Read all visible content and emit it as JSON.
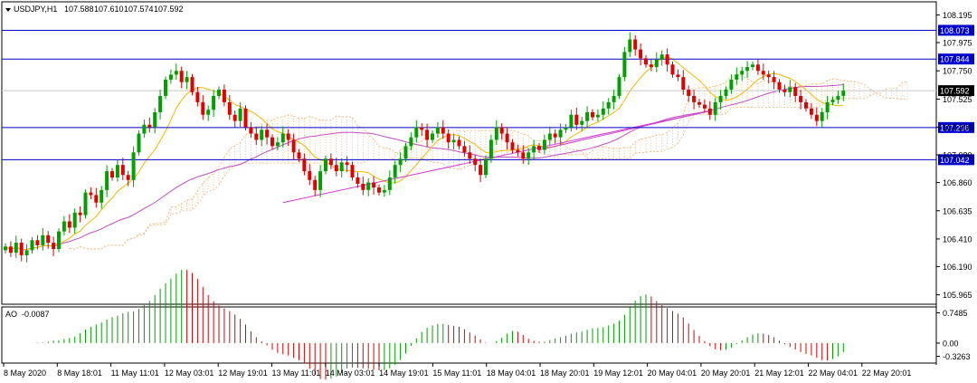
{
  "chart_data": [
    {
      "type": "candlestick",
      "title": "USDJPY,H1",
      "ohlc_header": [
        "107.588",
        "107.610",
        "107.574",
        "107.592"
      ],
      "ylim": [
        105.89,
        108.3
      ],
      "y_ticks": [
        "108.195",
        "107.975",
        "107.750",
        "107.525",
        "107.300",
        "107.080",
        "106.860",
        "106.635",
        "106.410",
        "106.190",
        "105.965"
      ],
      "x_ticks": [
        "8 May 2020",
        "8 May 18:01",
        "11 May 11:01",
        "12 May 03:01",
        "12 May 19:01",
        "13 May 11:01",
        "14 May 03:01",
        "14 May 19:01",
        "15 May 11:01",
        "18 May 04:01",
        "18 May 20:01",
        "19 May 12:01",
        "20 May 04:01",
        "20 May 20:01",
        "21 May 12:01",
        "22 May 04:01",
        "22 May 20:01"
      ],
      "current_price": "107.592",
      "levels": [
        {
          "value": 108.073,
          "label": "108.073",
          "color": "#0000cc"
        },
        {
          "value": 107.844,
          "label": "107.844",
          "color": "#0000cc"
        },
        {
          "value": 107.298,
          "label": "107.298",
          "color": "#0000cc"
        },
        {
          "value": 107.042,
          "label": "107.042",
          "color": "#0000cc"
        }
      ],
      "close": [
        106.35,
        106.3,
        106.38,
        106.28,
        106.32,
        106.4,
        106.36,
        106.44,
        106.38,
        106.33,
        106.47,
        106.55,
        106.5,
        106.62,
        106.6,
        106.78,
        106.76,
        106.7,
        106.8,
        106.95,
        106.9,
        107.0,
        106.92,
        106.88,
        107.1,
        107.25,
        107.32,
        107.3,
        107.42,
        107.55,
        107.68,
        107.72,
        107.75,
        107.66,
        107.7,
        107.58,
        107.5,
        107.4,
        107.44,
        107.55,
        107.6,
        107.5,
        107.4,
        107.35,
        107.45,
        107.3,
        107.25,
        107.2,
        107.28,
        107.22,
        107.15,
        107.18,
        107.25,
        107.2,
        107.1,
        107.05,
        106.95,
        106.88,
        106.8,
        106.95,
        107.05,
        107.0,
        106.95,
        107.02,
        107.0,
        106.9,
        106.85,
        106.8,
        106.86,
        106.82,
        106.78,
        106.8,
        106.9,
        107.0,
        107.05,
        107.15,
        107.22,
        107.3,
        107.28,
        107.2,
        107.25,
        107.3,
        107.25,
        107.18,
        107.2,
        107.15,
        107.1,
        107.05,
        107.0,
        106.92,
        107.05,
        107.2,
        107.3,
        107.25,
        107.18,
        107.12,
        107.1,
        107.05,
        107.1,
        107.15,
        107.12,
        107.2,
        107.25,
        107.22,
        107.28,
        107.3,
        107.4,
        107.32,
        107.35,
        107.42,
        107.38,
        107.4,
        107.45,
        107.5,
        107.55,
        107.7,
        107.9,
        108.0,
        107.92,
        107.85,
        107.8,
        107.78,
        107.84,
        107.88,
        107.8,
        107.72,
        107.7,
        107.6,
        107.55,
        107.5,
        107.48,
        107.45,
        107.4,
        107.5,
        107.55,
        107.6,
        107.68,
        107.72,
        107.75,
        107.78,
        107.8,
        107.75,
        107.72,
        107.7,
        107.66,
        107.6,
        107.58,
        107.62,
        107.55,
        107.5,
        107.45,
        107.4,
        107.35,
        107.42,
        107.5,
        107.52,
        107.55,
        107.592
      ],
      "ao": {
        "name": "AO",
        "label_value": "-0.0087",
        "ylim": [
          -0.45,
          0.85
        ],
        "ticks": [
          "0.7485",
          "0.00",
          "-0.3263"
        ]
      },
      "colors": {
        "up": "#00a000",
        "down": "#e00000",
        "ma_fast": "#f2b800",
        "ma_slow": "#c050c0",
        "cloud": "#f0b070",
        "trend": "#d040d0"
      }
    }
  ]
}
